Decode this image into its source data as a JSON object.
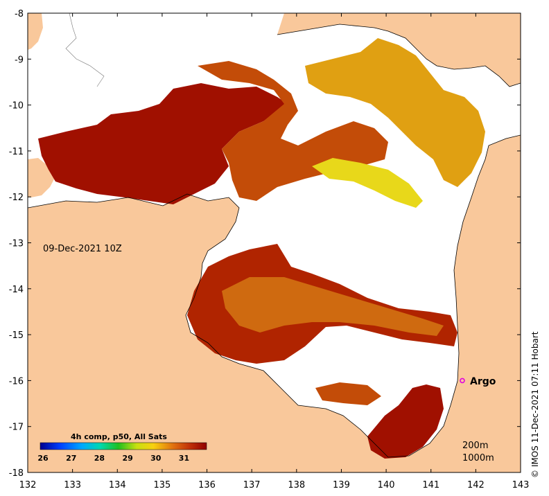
{
  "map": {
    "date_label": "09-Dec-2021 10Z",
    "credit": "© IMOS 11-Dec-2021 07:11 Hobart",
    "x_ticks": [
      132,
      133,
      134,
      135,
      136,
      137,
      138,
      139,
      140,
      141,
      142,
      143
    ],
    "y_ticks": [
      -8,
      -9,
      -10,
      -11,
      -12,
      -13,
      -14,
      -15,
      -16,
      -17,
      -18
    ],
    "x_range": [
      132,
      143
    ],
    "y_range": [
      -18,
      -8
    ],
    "argo": {
      "label": "Argo",
      "lon": 141.7,
      "lat": -16.0,
      "color": "#e000e0"
    },
    "depth_labels": [
      "200m",
      "1000m"
    ],
    "colorbar": {
      "title": "4h comp, p50, All Sats",
      "ticks": [
        "26",
        "27",
        "28",
        "29",
        "30",
        "31"
      ],
      "range": [
        25.9,
        31.8
      ]
    },
    "colors": {
      "land": "#f9c89b",
      "hot": "#a01000",
      "warm": "#c34c08",
      "mid": "#e0a012",
      "cool": "#e8d81a"
    }
  }
}
